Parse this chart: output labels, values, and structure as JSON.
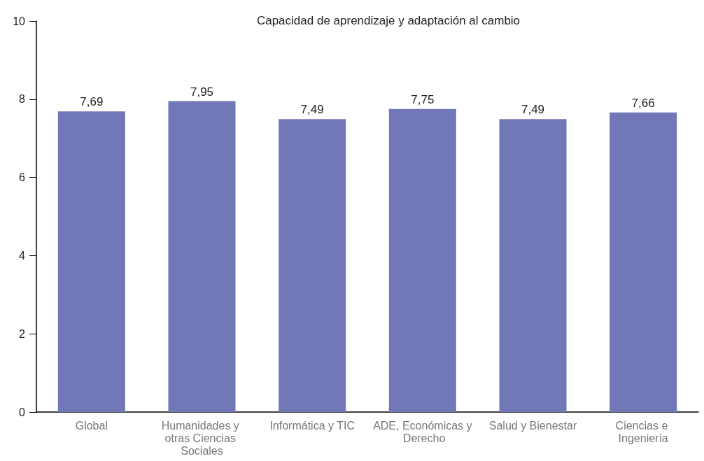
{
  "chart_data": {
    "type": "bar",
    "title": "Capacidad de aprendizaje y adaptación al cambio",
    "categories": [
      "Global",
      "Humanidades y otras Ciencias Sociales",
      "Informática y TIC",
      "ADE, Económicas y Derecho",
      "Salud y Bienestar",
      "Ciencias e Ingeniería"
    ],
    "values": [
      7.69,
      7.95,
      7.49,
      7.75,
      7.49,
      7.66
    ],
    "value_labels": [
      "7,69",
      "7,95",
      "7,49",
      "7,75",
      "7,49",
      "7,66"
    ],
    "color": "#7277b7",
    "ylim": [
      0,
      10
    ],
    "yticks": [
      0,
      2,
      4,
      6,
      8,
      10
    ],
    "grid": false
  }
}
